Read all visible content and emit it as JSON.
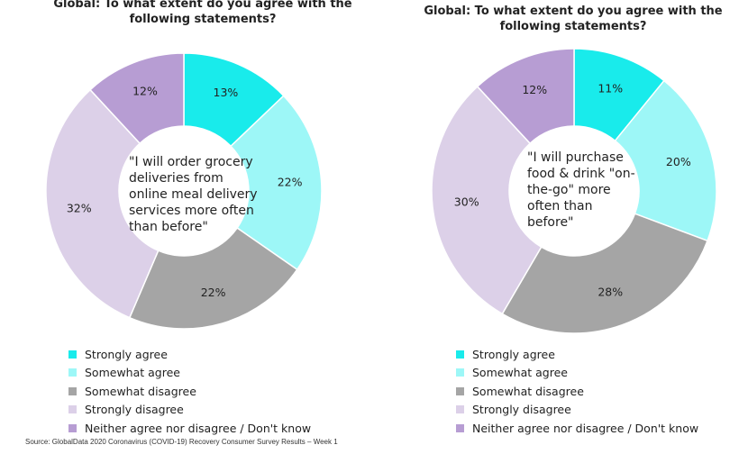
{
  "colors": {
    "strongly_agree": "#19EBEB",
    "somewhat_agree": "#9DF7F7",
    "somewhat_disagree": "#A5A5A5",
    "strongly_disagree": "#DCD0E8",
    "neither": "#B79DD3"
  },
  "chart_data": [
    {
      "type": "pie",
      "title": "Global: To what extent do you agree with the following statements?",
      "center_text": "\"I will order grocery deliveries from online meal delivery services more often than before\"",
      "categories": [
        "Strongly agree",
        "Somewhat agree",
        "Somewhat disagree",
        "Strongly disagree",
        "Neither agree nor disagree / Don't know"
      ],
      "values": [
        13,
        22,
        22,
        32,
        12
      ],
      "labels": [
        "13%",
        "22%",
        "22%",
        "32%",
        "12%"
      ],
      "legend_placement": "bottom"
    },
    {
      "type": "pie",
      "title": "Global: To what extent do you agree with the following statements?",
      "center_text": "\"I will purchase food & drink \"on-the-go\" more often than before\"",
      "categories": [
        "Strongly agree",
        "Somewhat agree",
        "Somewhat disagree",
        "Strongly disagree",
        "Neither agree nor disagree / Don't know"
      ],
      "values": [
        11,
        20,
        28,
        30,
        12
      ],
      "labels": [
        "11%",
        "20%",
        "28%",
        "30%",
        "12%"
      ],
      "legend_placement": "bottom"
    }
  ],
  "source": "Source: GlobalData 2020 Coronavirus (COVID-19) Recovery Consumer Survey Results – Week 1"
}
